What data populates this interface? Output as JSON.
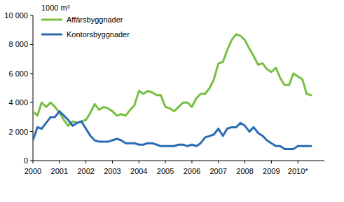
{
  "chart_data": {
    "type": "line",
    "ylabel": "1000 m³",
    "x": [
      2000,
      2000.17,
      2000.33,
      2000.5,
      2000.67,
      2000.83,
      2001,
      2001.17,
      2001.33,
      2001.5,
      2001.67,
      2001.83,
      2002,
      2002.17,
      2002.33,
      2002.5,
      2002.67,
      2002.83,
      2003,
      2003.17,
      2003.33,
      2003.5,
      2003.67,
      2003.83,
      2004,
      2004.17,
      2004.33,
      2004.5,
      2004.67,
      2004.83,
      2005,
      2005.17,
      2005.33,
      2005.5,
      2005.67,
      2005.83,
      2006,
      2006.17,
      2006.33,
      2006.5,
      2006.67,
      2006.83,
      2007,
      2007.17,
      2007.33,
      2007.5,
      2007.67,
      2007.83,
      2008,
      2008.17,
      2008.33,
      2008.5,
      2008.67,
      2008.83,
      2009,
      2009.17,
      2009.33,
      2009.5,
      2009.67,
      2009.83,
      2010,
      2010.17,
      2010.33,
      2010.5
    ],
    "series": [
      {
        "name": "Affärsbyggnader",
        "color": "#77c043",
        "values": [
          3400,
          3100,
          4000,
          3700,
          4000,
          3700,
          3300,
          2800,
          2400,
          2700,
          2600,
          2700,
          2800,
          3300,
          3900,
          3500,
          3700,
          3600,
          3400,
          3100,
          3200,
          3100,
          3500,
          3800,
          4800,
          4600,
          4800,
          4700,
          4500,
          4500,
          3700,
          3600,
          3400,
          3700,
          4000,
          4000,
          3700,
          4300,
          4600,
          4600,
          5000,
          5600,
          6700,
          6800,
          7600,
          8300,
          8700,
          8600,
          8300,
          7700,
          7200,
          6600,
          6700,
          6300,
          6100,
          6400,
          5700,
          5200,
          5200,
          6000,
          5800,
          5600,
          4600,
          4500
        ]
      },
      {
        "name": "Kontorsbyggnader",
        "color": "#2b6cb3",
        "values": [
          1400,
          2300,
          2200,
          2600,
          3000,
          3000,
          3400,
          3100,
          2800,
          2400,
          2600,
          2700,
          2200,
          1700,
          1400,
          1300,
          1300,
          1300,
          1400,
          1500,
          1400,
          1200,
          1200,
          1200,
          1100,
          1100,
          1200,
          1200,
          1100,
          1000,
          1000,
          1000,
          1000,
          1100,
          1100,
          1000,
          1100,
          1000,
          1200,
          1600,
          1700,
          1800,
          2200,
          1700,
          2200,
          2300,
          2300,
          2600,
          2400,
          2000,
          2300,
          1900,
          1700,
          1400,
          1200,
          1000,
          1000,
          800,
          800,
          800,
          1000,
          1000,
          1000,
          1000
        ]
      }
    ],
    "xlim": [
      2000,
      2011
    ],
    "xticks": [
      2000,
      2001,
      2002,
      2003,
      2004,
      2005,
      2006,
      2007,
      2008,
      2009,
      {
        "value": 2010,
        "label": "2010*"
      }
    ],
    "ylim": [
      0,
      10000
    ],
    "yticks": [
      0,
      {
        "value": 2000,
        "label": "2 000"
      },
      {
        "value": 4000,
        "label": "4 000"
      },
      {
        "value": 6000,
        "label": "6 000"
      },
      {
        "value": 8000,
        "label": "8 000"
      },
      {
        "value": 10000,
        "label": "10 000"
      }
    ],
    "grid": false,
    "legend": "upper left"
  }
}
